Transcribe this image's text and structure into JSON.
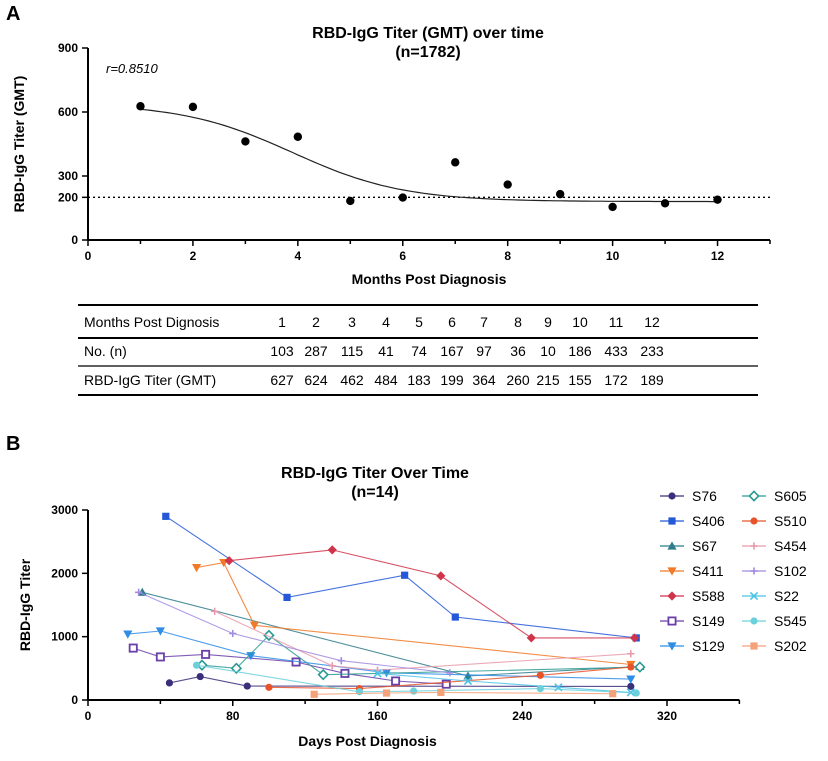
{
  "panel_a": {
    "label": "A",
    "title": [
      "RBD-IgG Titer (GMT) over time",
      "(n=1782)"
    ],
    "annotation": "r=0.8510",
    "table": {
      "header_label": "Months Post Dignosis",
      "rows": [
        {
          "label": "No. (n)",
          "values": [
            "103",
            "287",
            "115",
            "41",
            "74",
            "167",
            "97",
            "36",
            "10",
            "186",
            "433",
            "233"
          ]
        },
        {
          "label": "RBD-IgG Titer (GMT)",
          "values": [
            "627",
            "624",
            "462",
            "484",
            "183",
            "199",
            "364",
            "260",
            "215",
            "155",
            "172",
            "189"
          ]
        }
      ],
      "months": [
        "1",
        "2",
        "3",
        "4",
        "5",
        "6",
        "7",
        "8",
        "9",
        "10",
        "11",
        "12"
      ]
    }
  },
  "panel_b": {
    "label": "B",
    "title": [
      "RBD-IgG Titer Over Time",
      "(n=14)"
    ]
  },
  "chart_data": [
    {
      "type": "scatter",
      "title": "RBD-IgG Titer (GMT) over time (n=1782)",
      "xlabel": "Months Post Diagnosis",
      "ylabel": "RBD-IgG Titer (GMT)",
      "xlim": [
        0,
        13
      ],
      "ylim": [
        0,
        900
      ],
      "x_ticks": [
        0,
        2,
        4,
        6,
        8,
        10,
        12
      ],
      "y_ticks": [
        0,
        200,
        300,
        600,
        900
      ],
      "reference_line_y": 200,
      "fit_curve": "sigmoid",
      "x": [
        1,
        2,
        3,
        4,
        5,
        6,
        7,
        8,
        9,
        10,
        11,
        12
      ],
      "y": [
        627,
        624,
        462,
        484,
        183,
        199,
        364,
        260,
        215,
        155,
        172,
        189
      ]
    },
    {
      "type": "line",
      "title": "RBD-IgG Titer Over Time (n=14)",
      "xlabel": "Days Post Diagnosis",
      "ylabel": "RBD-IgG Titer",
      "xlim": [
        0,
        360
      ],
      "ylim": [
        0,
        3000
      ],
      "x_ticks": [
        0,
        80,
        160,
        240,
        320
      ],
      "y_ticks": [
        0,
        1000,
        2000,
        3000
      ],
      "legend_position": "right",
      "series": [
        {
          "name": "S76",
          "color": "#3a2f7a",
          "marker": "circle",
          "x": [
            45,
            62,
            88,
            300
          ],
          "y": [
            270,
            370,
            220,
            215
          ]
        },
        {
          "name": "S406",
          "color": "#2458d8",
          "marker": "square",
          "x": [
            43,
            110,
            175,
            203,
            303
          ],
          "y": [
            2900,
            1620,
            1970,
            1310,
            980
          ]
        },
        {
          "name": "S67",
          "color": "#2f7d8c",
          "marker": "triangle",
          "x": [
            30,
            210,
            305
          ],
          "y": [
            1700,
            380,
            530
          ]
        },
        {
          "name": "S411",
          "color": "#f07a28",
          "marker": "triangle-down",
          "x": [
            60,
            75,
            92,
            300
          ],
          "y": [
            2090,
            2170,
            1180,
            560
          ]
        },
        {
          "name": "S588",
          "color": "#d0344a",
          "marker": "diamond",
          "x": [
            78,
            135,
            195,
            245,
            302
          ],
          "y": [
            2200,
            2370,
            1960,
            980,
            980
          ]
        },
        {
          "name": "S149",
          "color": "#6a3fa8",
          "marker": "square-open",
          "x": [
            25,
            40,
            65,
            115,
            142,
            170,
            198
          ],
          "y": [
            820,
            680,
            720,
            600,
            420,
            300,
            250
          ]
        },
        {
          "name": "S129",
          "color": "#2f8de8",
          "marker": "triangle-down",
          "x": [
            22,
            40,
            90,
            165,
            300
          ],
          "y": [
            1040,
            1090,
            700,
            430,
            330
          ]
        },
        {
          "name": "S605",
          "color": "#2a9a93",
          "marker": "diamond-open",
          "x": [
            63,
            82,
            100,
            130,
            305
          ],
          "y": [
            550,
            500,
            1020,
            400,
            520
          ]
        },
        {
          "name": "S510",
          "color": "#e8542a",
          "marker": "circle",
          "x": [
            100,
            150,
            250,
            300
          ],
          "y": [
            200,
            180,
            390,
            520
          ]
        },
        {
          "name": "S454",
          "color": "#e89aac",
          "marker": "plus",
          "x": [
            70,
            135,
            160,
            300
          ],
          "y": [
            1400,
            540,
            470,
            730
          ]
        },
        {
          "name": "S102",
          "color": "#a18be0",
          "marker": "plus",
          "x": [
            28,
            80,
            140,
            200
          ],
          "y": [
            1700,
            1050,
            620,
            430
          ]
        },
        {
          "name": "S22",
          "color": "#4cc3e6",
          "marker": "cross",
          "x": [
            160,
            210,
            260,
            300
          ],
          "y": [
            420,
            300,
            200,
            120
          ]
        },
        {
          "name": "S545",
          "color": "#6ad0dc",
          "marker": "circle",
          "x": [
            60,
            150,
            180,
            250,
            303
          ],
          "y": [
            550,
            130,
            140,
            180,
            110
          ]
        },
        {
          "name": "S202",
          "color": "#f4a27a",
          "marker": "square",
          "x": [
            125,
            165,
            195,
            290
          ],
          "y": [
            90,
            110,
            120,
            100
          ]
        }
      ]
    }
  ]
}
